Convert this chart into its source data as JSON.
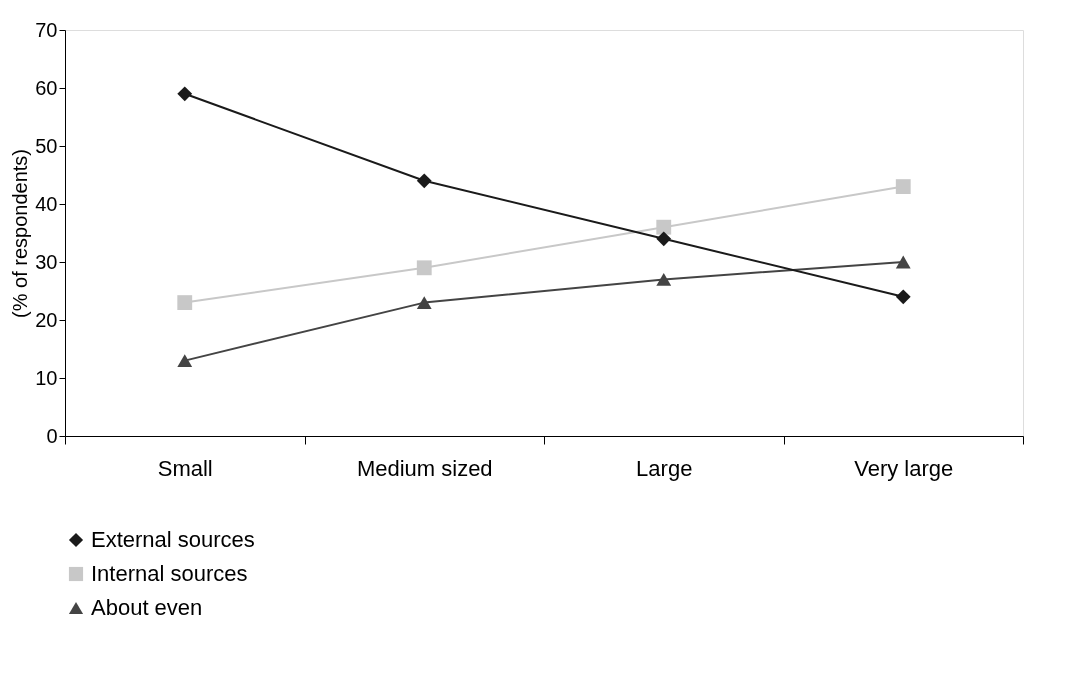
{
  "chart_data": {
    "type": "line",
    "ylabel": "(% of respondents)",
    "categories": [
      "Small",
      "Medium sized",
      "Large",
      "Very large"
    ],
    "series": [
      {
        "name": "External sources",
        "color": "#1a1a1a",
        "marker": "diamond",
        "values": [
          59,
          44,
          34,
          24
        ]
      },
      {
        "name": "Internal sources",
        "color": "#c8c8c8",
        "marker": "square",
        "values": [
          23,
          29,
          36,
          43
        ]
      },
      {
        "name": "About even",
        "color": "#444444",
        "marker": "triangle",
        "values": [
          13,
          23,
          27,
          30
        ]
      }
    ],
    "ylim": [
      0,
      70
    ],
    "yticks": [
      0,
      10,
      20,
      30,
      40,
      50,
      60,
      70
    ],
    "grid": false,
    "legend": "bottom left"
  }
}
